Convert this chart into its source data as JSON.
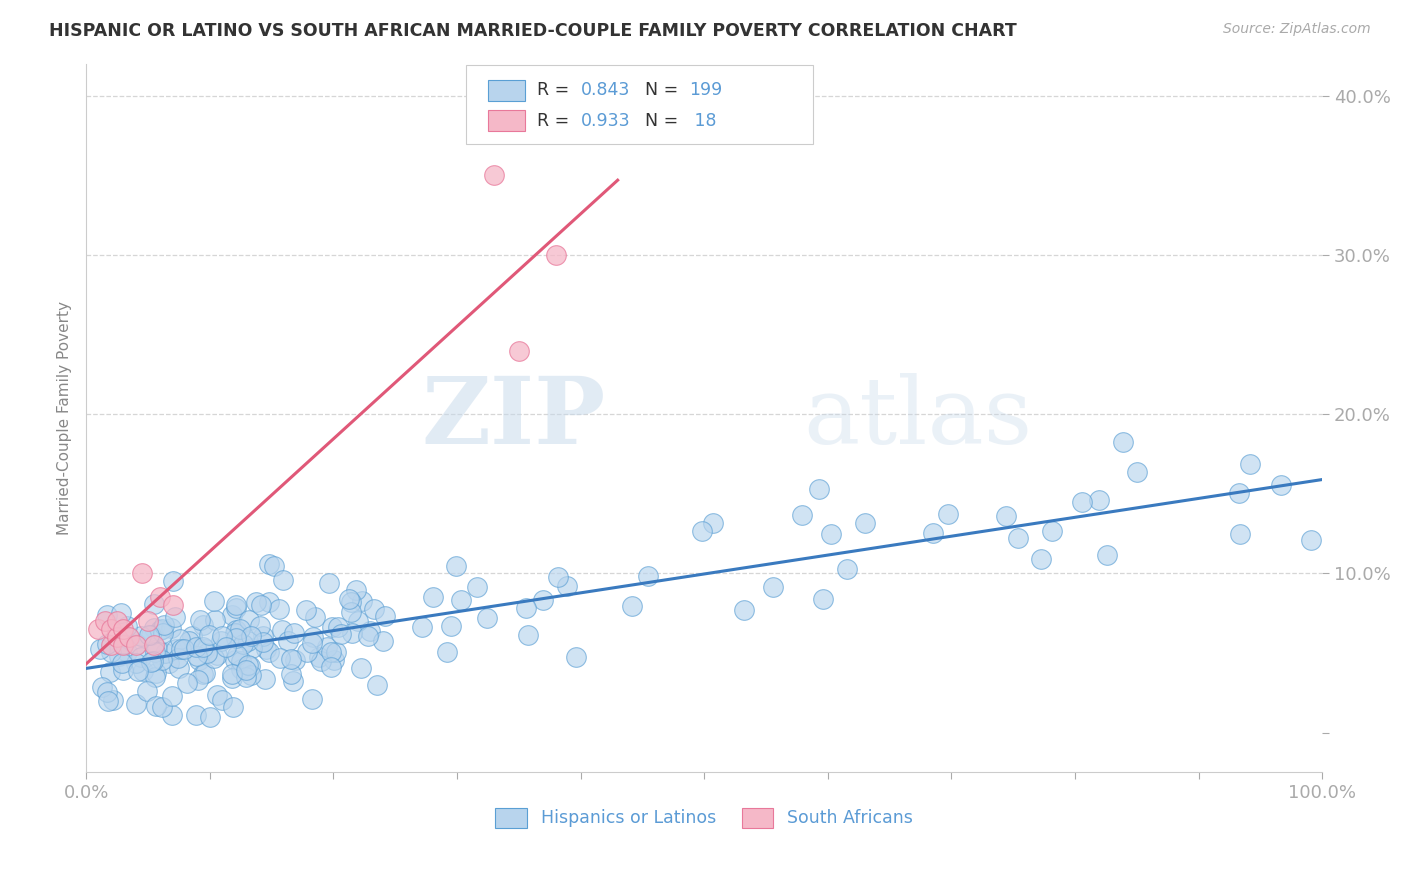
{
  "title": "HISPANIC OR LATINO VS SOUTH AFRICAN MARRIED-COUPLE FAMILY POVERTY CORRELATION CHART",
  "source": "Source: ZipAtlas.com",
  "ylabel": "Married-Couple Family Poverty",
  "xlim": [
    0,
    1.0
  ],
  "ylim": [
    -0.025,
    0.42
  ],
  "legend_R_blue": "0.843",
  "legend_N_blue": "199",
  "legend_R_pink": "0.933",
  "legend_N_pink": " 18",
  "watermark_zip": "ZIP",
  "watermark_atlas": "atlas",
  "blue_fill": "#b8d4ed",
  "blue_edge": "#5a9fd4",
  "pink_fill": "#f5b8c8",
  "pink_edge": "#e8789a",
  "line_blue": "#3a7abf",
  "line_pink": "#e05878",
  "title_color": "#333333",
  "tick_color": "#5b9bd5",
  "label_color": "#888888",
  "grid_color": "#cccccc",
  "legend_text_color": "#333333",
  "legend_num_color": "#5b9bd5"
}
